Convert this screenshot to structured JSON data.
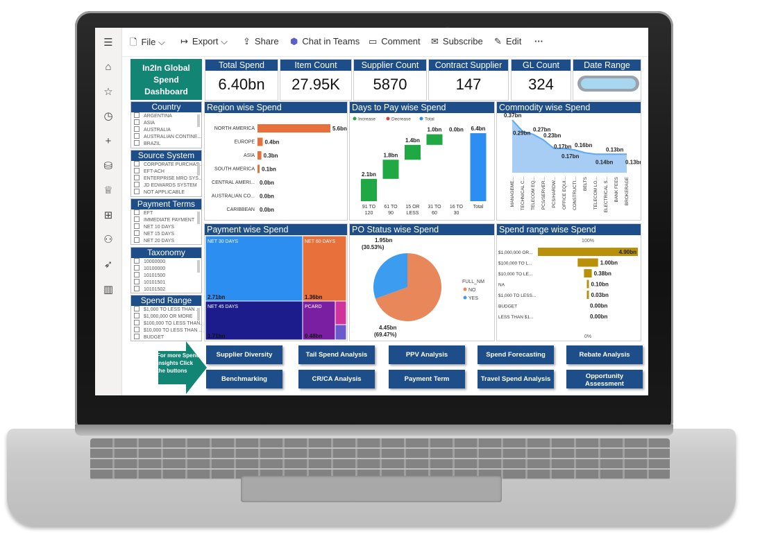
{
  "toolbar": {
    "file": "File",
    "export": "Export",
    "share": "Share",
    "chat": "Chat in Teams",
    "comment": "Comment",
    "subscribe": "Subscribe",
    "edit": "Edit",
    "more": "···"
  },
  "rail_icons": [
    "hamburger-icon",
    "home-icon",
    "star-icon",
    "clock-icon",
    "plus-icon",
    "database-icon",
    "trophy-icon",
    "apps-icon",
    "people-icon",
    "rocket-icon",
    "book-icon"
  ],
  "title": {
    "line1": "In2In Global",
    "line2": "Spend",
    "line3": "Dashboard"
  },
  "kpis": [
    {
      "label": "Total Spend",
      "value": "6.40bn"
    },
    {
      "label": "Item Count",
      "value": "27.95K"
    },
    {
      "label": "Supplier Count",
      "value": "5870"
    },
    {
      "label": "Contract Supplier",
      "value": "147"
    },
    {
      "label": "GL Count",
      "value": "324"
    },
    {
      "label": "Date Range",
      "value": ""
    }
  ],
  "slicers": {
    "country": {
      "title": "Country",
      "items": [
        "ARGENTINA",
        "ASIA",
        "AUSTRALIA",
        "AUSTRALIAN CONTINE...",
        "BRAZIL"
      ]
    },
    "source": {
      "title": "Source System",
      "items": [
        "CORPORATE PURCHAS...",
        "EFT-ACH",
        "ENTERPRISE MRO SYS...",
        "JD EDWARDS SYSTEM",
        "NOT APPLICABLE"
      ]
    },
    "terms": {
      "title": "Payment Terms",
      "items": [
        "EFT",
        "IMMEDIATE PAYMENT",
        "NET 10 DAYS",
        "NET 15 DAYS",
        "NET 20 DAYS"
      ]
    },
    "taxonomy": {
      "title": "Taxonomy",
      "items": [
        "10000000",
        "10100000",
        "10101500",
        "10101501",
        "10101502"
      ]
    },
    "range": {
      "title": "Spend Range",
      "items": [
        "$1,000 TO LESS THAN ...",
        "$1,000,000 OR MORE",
        "$100,000 TO LESS THAN...",
        "$10,000 TO LESS THAN ...",
        "BUDGET"
      ]
    }
  },
  "panels": {
    "region": "Region wise Spend",
    "days": "Days to Pay wise Spend",
    "commodity": "Commodity wise Spend",
    "payment": "Payment wise Spend",
    "po": "PO Status wise Spend",
    "spendrange": "Spend range wise Spend"
  },
  "chart_data": [
    {
      "type": "bar",
      "title": "Region wise Spend",
      "categories": [
        "NORTH AMERICA",
        "EUROPE",
        "ASIA",
        "SOUTH AMERICA",
        "CENTRAL AMERI...",
        "AUSTRALIAN CO...",
        "CARIBBEAN"
      ],
      "values": [
        5.6,
        0.4,
        0.3,
        0.1,
        0.0,
        0.0,
        0.0
      ],
      "labels": [
        "5.6bn",
        "0.4bn",
        "0.3bn",
        "0.1bn",
        "0.0bn",
        "0.0bn",
        "0.0bn"
      ],
      "color": "#e8703a"
    },
    {
      "type": "bar",
      "subtype": "waterfall",
      "title": "Days to Pay wise Spend",
      "legend": [
        "Increase",
        "Decrease",
        "Total"
      ],
      "categories": [
        "91 TO 120",
        "61 TO 90",
        "15 OR LESS",
        "31 TO 60",
        "16 TO 30",
        "Total"
      ],
      "values": [
        2.1,
        1.8,
        1.4,
        1.0,
        0.0,
        6.4
      ],
      "labels": [
        "2.1bn",
        "1.8bn",
        "1.4bn",
        "1.0bn",
        "0.0bn",
        "6.4bn"
      ],
      "colors": {
        "increase": "#1fa843",
        "decrease": "#e03b3b",
        "total": "#2b8ef0"
      }
    },
    {
      "type": "area",
      "title": "Commodity wise Spend",
      "categories": [
        "MANAGEME...",
        "TECHNICAL C...",
        "TELECOM EQ...",
        "PCS/SERVER...",
        "PCS/HARDW...",
        "OFFICE EQUI...",
        "CONSTRUCTI...",
        "BELTS",
        "TELECOM LO...",
        "ELECTRICAL S...",
        "BANK FEES",
        "BROKERAGE"
      ],
      "values": [
        0.37,
        0.29,
        0.27,
        0.23,
        0.17,
        0.17,
        0.16,
        0.14,
        0.13,
        0.13,
        0.13,
        0.13
      ],
      "labels": [
        "0.37bn",
        "0.29bn",
        "0.27bn",
        "0.23bn",
        "0.17bn",
        "0.17bn",
        "0.16bn",
        "0.14bn",
        "0.13bn",
        "0.13bn"
      ],
      "color": "#5ea9f2"
    },
    {
      "type": "heatmap",
      "subtype": "treemap",
      "title": "Payment wise Spend",
      "items": [
        {
          "name": "NET 30 DAYS",
          "value": "2.71bn",
          "color": "#2b8ef0"
        },
        {
          "name": "NET 60 DAYS",
          "value": "1.36bn",
          "color": "#e8703a"
        },
        {
          "name": "NET 45 DAYS",
          "value": "1.71bn",
          "color": "#1c1c8c"
        },
        {
          "name": "PCARD",
          "value": "0.48bn",
          "color": "#7b1fa2"
        },
        {
          "name": "",
          "value": "",
          "color": "#d0339b"
        },
        {
          "name": "",
          "value": "",
          "color": "#6a5acd"
        }
      ]
    },
    {
      "type": "pie",
      "title": "PO Status wise Spend",
      "legend_title": "FULL_NM",
      "slices": [
        {
          "name": "NO",
          "value": 4.45,
          "label": "4.45bn",
          "pct": "(69.47%)",
          "color": "#e8875a"
        },
        {
          "name": "YES",
          "value": 1.95,
          "label": "1.95bn",
          "pct": "(30.53%)",
          "color": "#3c9cf0"
        }
      ]
    },
    {
      "type": "bar",
      "subtype": "funnel",
      "title": "Spend range wise Spend",
      "top_label": "100%",
      "bottom_label": "0%",
      "categories": [
        "$1,000,000 OR...",
        "$100,000 TO L...",
        "$10,000 TO LE...",
        "NA",
        "$1,000 TO LESS...",
        "BUDGET",
        "LESS THAN $1..."
      ],
      "values": [
        4.9,
        1.0,
        0.38,
        0.1,
        0.03,
        0.0,
        0.0
      ],
      "labels": [
        "4.90bn",
        "1.00bn",
        "0.38bn",
        "0.10bn",
        "0.03bn",
        "0.00bn",
        "0.00bn"
      ],
      "color": "#b8900a"
    }
  ],
  "insight_text": "For more Spend Insights Click the buttons",
  "buttons": [
    "Supplier Diversity",
    "Tail Spend Analysis",
    "PPV Analysis",
    "Spend Forecasting",
    "Rebate Analysis",
    "Benchmarking",
    "CR/CA Analysis",
    "Payment Term",
    "Travel Spend Analysis",
    "Opportunity Assessment"
  ],
  "colors": {
    "header": "#1d4e89",
    "title_bg": "#128575",
    "arrow": "#128575"
  }
}
